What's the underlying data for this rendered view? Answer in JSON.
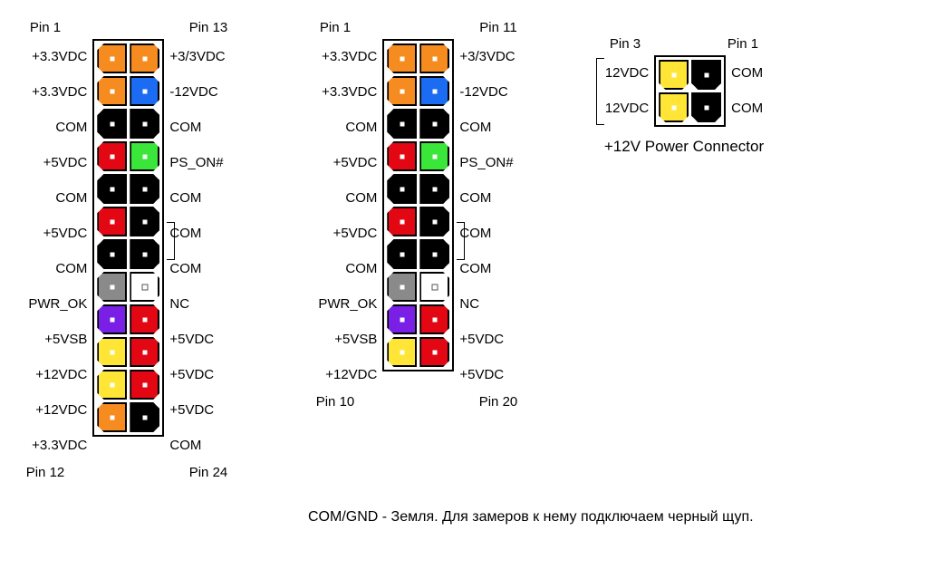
{
  "colors": {
    "orange": "#f68b1f",
    "blue": "#1b6cf2",
    "black": "#000000",
    "red": "#e30613",
    "green": "#39e639",
    "gray": "#8a8a8a",
    "white": "#ffffff",
    "purple": "#7a1fe6",
    "yellow": "#ffe636"
  },
  "labels": {
    "p33v": "+3.3VDC",
    "com": "COM",
    "p5v": "+5VDC",
    "pwrok": "PWR_OK",
    "p5vsb": "+5VSB",
    "p12v": "+12VDC",
    "p3_3v": "+3/3VDC",
    "n12v": "-12VDC",
    "pson": "PS_ON#",
    "nc": "NC",
    "v12": "12VDC"
  },
  "conn24": {
    "topLeft": "Pin 1",
    "topRight": "Pin 13",
    "botLeft": "Pin 12",
    "botRight": "Pin 24",
    "rows": [
      {
        "l": "p33v",
        "lc": "orange",
        "rc": "orange",
        "r": "p3_3v",
        "sh": "chamfer-tl-bl",
        "sh2": "chamfer-tr-br"
      },
      {
        "l": "p33v",
        "lc": "orange",
        "rc": "blue",
        "r": "n12v",
        "sh": "chamfer-tl-bl",
        "sh2": "chamfer-tr-br"
      },
      {
        "l": "com",
        "lc": "black",
        "rc": "black",
        "r": "com",
        "sh": "chamfer-tl-bl",
        "sh2": "chamfer-tr-br"
      },
      {
        "l": "p5v",
        "lc": "red",
        "rc": "green",
        "r": "pson",
        "sh": "chamfer-tl-bl",
        "sh2": "chamfer-tr-br"
      },
      {
        "l": "com",
        "lc": "black",
        "rc": "black",
        "r": "com",
        "sh": "chamfer-tl-bl",
        "sh2": "chamfer-tr-br"
      },
      {
        "l": "p5v",
        "lc": "red",
        "rc": "black",
        "r": "com",
        "sh": "chamfer-tl-bl",
        "sh2": "chamfer-tr-br"
      },
      {
        "l": "com",
        "lc": "black",
        "rc": "black",
        "r": "com",
        "sh": "chamfer-tl-bl",
        "sh2": "chamfer-tr-br"
      },
      {
        "l": "pwrok",
        "lc": "gray",
        "rc": "white",
        "r": "nc",
        "sh": "chamfer-tl-bl",
        "sh2": "chamfer-tr-br",
        "dotdark": true
      },
      {
        "l": "p5vsb",
        "lc": "purple",
        "rc": "red",
        "r": "p5v",
        "sh": "chamfer-tl-bl",
        "sh2": "chamfer-tr-br"
      },
      {
        "l": "p12v",
        "lc": "yellow",
        "rc": "red",
        "r": "p5v",
        "sh": "chamfer-tl-bl",
        "sh2": "chamfer-tr-br"
      },
      {
        "l": "p12v",
        "lc": "yellow",
        "rc": "red",
        "r": "p5v",
        "sh": "chamfer-tl-bl",
        "sh2": "chamfer-tr-br"
      },
      {
        "l": "p33v",
        "lc": "orange",
        "rc": "black",
        "r": "com",
        "sh": "chamfer-tl-bl",
        "sh2": "chamfer-tr-br"
      }
    ]
  },
  "conn20": {
    "topLeft": "Pin 1",
    "topRight": "Pin 11",
    "botLeft": "Pin 10",
    "botRight": "Pin 20",
    "rows": [
      {
        "l": "p33v",
        "lc": "orange",
        "rc": "orange",
        "r": "p3_3v",
        "sh": "chamfer-tl-bl",
        "sh2": "chamfer-tr-br"
      },
      {
        "l": "p33v",
        "lc": "orange",
        "rc": "blue",
        "r": "n12v",
        "sh": "chamfer-tl-bl",
        "sh2": "chamfer-tr-br"
      },
      {
        "l": "com",
        "lc": "black",
        "rc": "black",
        "r": "com",
        "sh": "chamfer-tl-bl",
        "sh2": "chamfer-tr-br"
      },
      {
        "l": "p5v",
        "lc": "red",
        "rc": "green",
        "r": "pson",
        "sh": "chamfer-tl-bl",
        "sh2": "chamfer-tr-br"
      },
      {
        "l": "com",
        "lc": "black",
        "rc": "black",
        "r": "com",
        "sh": "chamfer-tl-bl",
        "sh2": "chamfer-tr-br"
      },
      {
        "l": "p5v",
        "lc": "red",
        "rc": "black",
        "r": "com",
        "sh": "chamfer-tl-bl",
        "sh2": "chamfer-tr-br"
      },
      {
        "l": "com",
        "lc": "black",
        "rc": "black",
        "r": "com",
        "sh": "chamfer-tl-bl",
        "sh2": "chamfer-tr-br"
      },
      {
        "l": "pwrok",
        "lc": "gray",
        "rc": "white",
        "r": "nc",
        "sh": "chamfer-tl-bl",
        "sh2": "chamfer-tr-br",
        "dotdark": true
      },
      {
        "l": "p5vsb",
        "lc": "purple",
        "rc": "red",
        "r": "p5v",
        "sh": "chamfer-tl-bl",
        "sh2": "chamfer-tr-br"
      },
      {
        "l": "p12v",
        "lc": "yellow",
        "rc": "red",
        "r": "p5v",
        "sh": "chamfer-tl-bl",
        "sh2": "chamfer-tr-br"
      }
    ]
  },
  "conn4": {
    "topLeft": "Pin 3",
    "topRight": "Pin 1",
    "title": "+12V Power Connector",
    "rows": [
      {
        "l": "v12",
        "lc": "yellow",
        "rc": "black",
        "r": "com",
        "sh": "chamfer-bl-br",
        "sh2": "chamfer-bl-br"
      },
      {
        "l": "v12",
        "lc": "yellow",
        "rc": "black",
        "r": "com",
        "sh": "chamfer-bl-br",
        "sh2": "chamfer-bl-br"
      }
    ]
  },
  "footnote": "COM/GND - Земля. Для замеров к нему подключаем черный щуп."
}
